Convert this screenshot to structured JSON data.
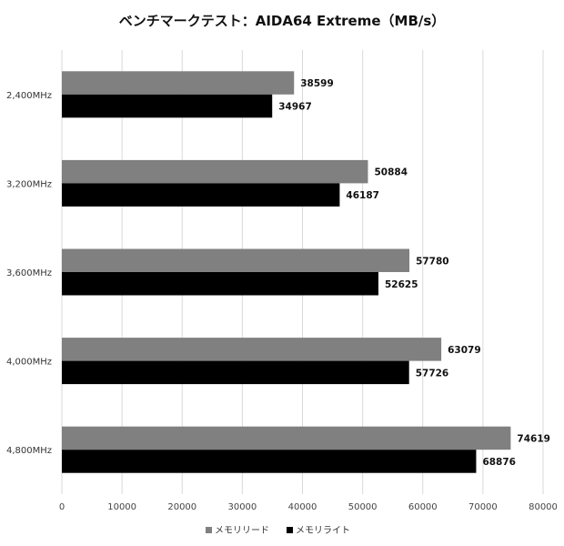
{
  "chart_data": {
    "type": "bar",
    "orientation": "horizontal",
    "title": "ベンチマークテスト：AIDA64 Extreme（MB/s）",
    "categories": [
      "2,400MHz",
      "3,200MHz",
      "3,600MHz",
      "4,000MHz",
      "4,800MHz"
    ],
    "series": [
      {
        "name": "メモリリード",
        "color": "#808080",
        "values": [
          38599,
          50884,
          57780,
          63079,
          74619
        ]
      },
      {
        "name": "メモリライト",
        "color": "#000000",
        "values": [
          34967,
          46187,
          52625,
          57726,
          68876
        ]
      }
    ],
    "xlim": [
      0,
      80000
    ],
    "xticks": [
      0,
      10000,
      20000,
      30000,
      40000,
      50000,
      60000,
      70000,
      80000
    ],
    "grid": true,
    "legend_position": "bottom"
  }
}
